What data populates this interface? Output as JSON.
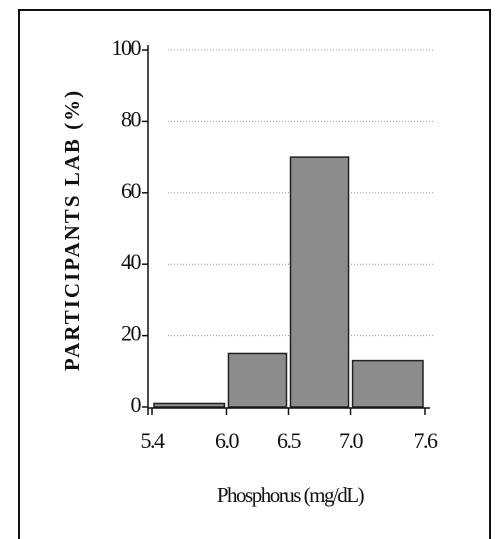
{
  "chart_data": {
    "type": "histogram",
    "xlabel": "Phosphorus (mg/dL)",
    "ylabel": "PARTICIPANTS LAB (%)",
    "bins": [
      5.4,
      6,
      6.5,
      7,
      7.6
    ],
    "values": [
      1,
      15,
      70,
      13
    ],
    "color": "#8c8c8c",
    "xlim": [
      5.4,
      7.6
    ],
    "xticks": [
      5.4,
      {
        "value": 6,
        "label": "6.0"
      },
      6.5,
      {
        "value": 7,
        "label": "7.0"
      },
      7.6
    ],
    "ylim": [
      0,
      100
    ],
    "yticks": [
      0,
      20,
      40,
      60,
      80,
      100
    ],
    "grid": true
  }
}
